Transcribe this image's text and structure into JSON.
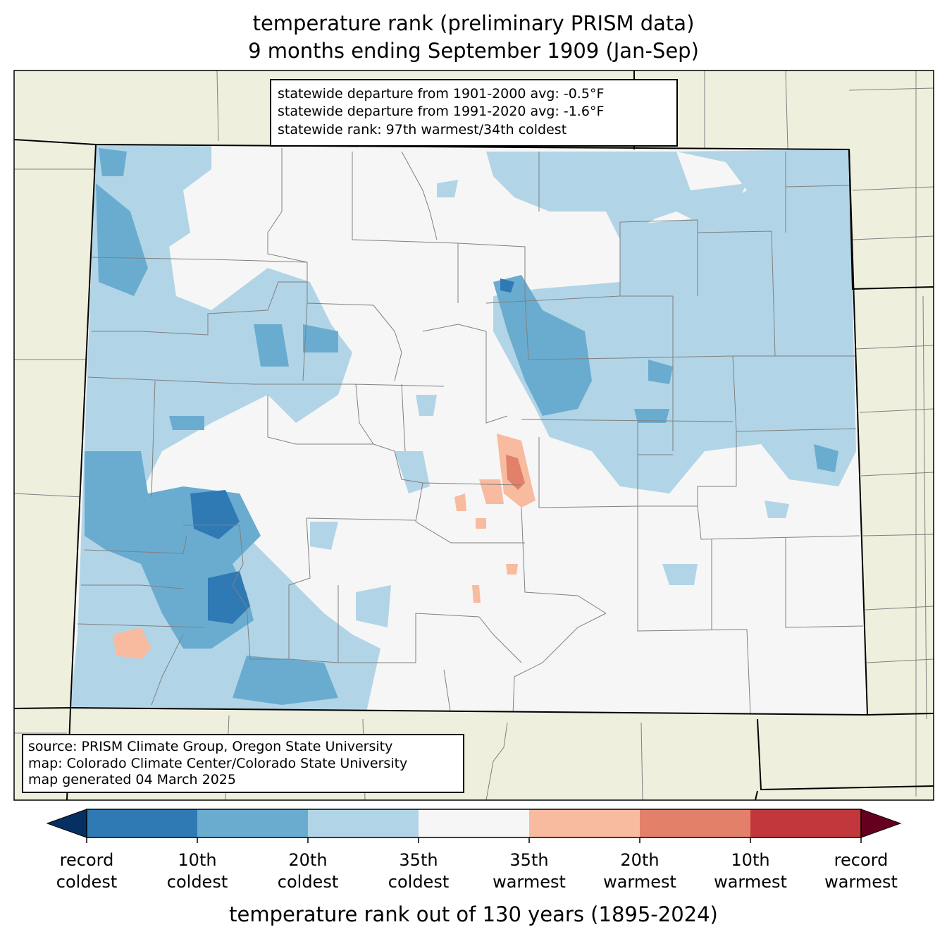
{
  "title": {
    "line1": "temperature rank (preliminary PRISM data)",
    "line2": "9 months ending September 1909 (Jan-Sep)"
  },
  "stats_box": {
    "lines": [
      "statewide departure from 1901-2000 avg: -0.5°F",
      "statewide departure from 1991-2020 avg: -1.6°F",
      "statewide rank: 97th warmest/34th coldest"
    ]
  },
  "source_box": {
    "lines": [
      "source: PRISM Climate Group, Oregon State University",
      "map: Colorado Climate Center/Colorado State University",
      "map generated 04 March 2025"
    ]
  },
  "colorbar": {
    "title": "temperature rank out of 130 years (1895-2024)",
    "labels": [
      {
        "top": "record",
        "bottom": "coldest"
      },
      {
        "top": "10th",
        "bottom": "coldest"
      },
      {
        "top": "20th",
        "bottom": "coldest"
      },
      {
        "top": "35th",
        "bottom": "coldest"
      },
      {
        "top": "35th",
        "bottom": "warmest"
      },
      {
        "top": "20th",
        "bottom": "warmest"
      },
      {
        "top": "10th",
        "bottom": "warmest"
      },
      {
        "top": "record",
        "bottom": "warmest"
      }
    ],
    "colors": {
      "extend_low": "#053061",
      "record_to_10th_coldest": "#2f79b5",
      "10th_to_20th_coldest": "#6aacd0",
      "20th_to_35th_coldest": "#b1d5e7",
      "near_normal": "#f6f6f6",
      "35th_to_20th_warmest": "#f8bba0",
      "20th_to_10th_warmest": "#e3806a",
      "10th_to_record_warmest": "#c1373b",
      "extend_high": "#67001f"
    }
  },
  "colors": {
    "land_outside": "#efefde",
    "county_lines": "#808080",
    "state_lines": "#000000"
  }
}
